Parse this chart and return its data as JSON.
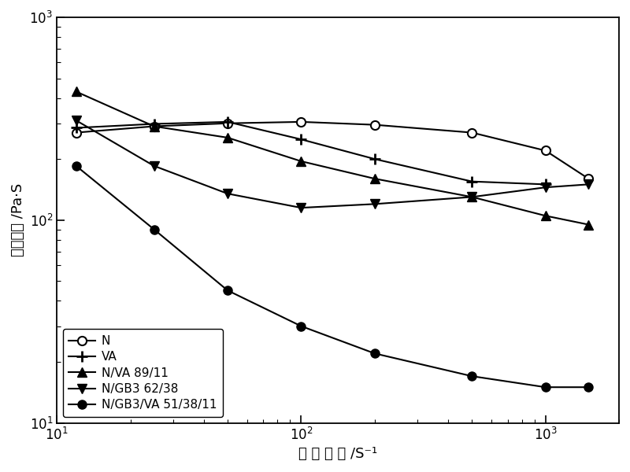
{
  "title": "",
  "xlabel": "剑 切 速 率 /S⁻¹",
  "ylabel": "表观粘度 /Pa·S",
  "xlim": [
    10,
    2000
  ],
  "ylim": [
    10,
    1000
  ],
  "series": [
    {
      "label": "N",
      "marker": "o",
      "marker_fill": "white",
      "marker_edge": "black",
      "marker_size": 8,
      "line_color": "black",
      "line_style": "-",
      "x": [
        12,
        25,
        50,
        100,
        200,
        500,
        1000,
        1500
      ],
      "y": [
        270,
        290,
        300,
        305,
        295,
        270,
        220,
        160
      ]
    },
    {
      "label": "VA",
      "marker": "P",
      "marker_fill": "black",
      "marker_edge": "black",
      "marker_size": 8,
      "line_color": "black",
      "line_style": "-",
      "x": [
        12,
        25,
        50,
        100,
        200,
        500,
        1000
      ],
      "y": [
        285,
        298,
        305,
        250,
        200,
        155,
        150
      ]
    },
    {
      "label": "N/VA 89/11",
      "marker": "^",
      "marker_fill": "black",
      "marker_edge": "black",
      "marker_size": 9,
      "line_color": "black",
      "line_style": "-",
      "x": [
        12,
        25,
        50,
        100,
        200,
        500,
        1000,
        1500
      ],
      "y": [
        430,
        290,
        255,
        195,
        160,
        130,
        105,
        95
      ]
    },
    {
      "label": "N/GB3 62/38",
      "marker": "v",
      "marker_fill": "black",
      "marker_edge": "black",
      "marker_size": 9,
      "line_color": "black",
      "line_style": "-",
      "x": [
        12,
        25,
        50,
        100,
        200,
        500,
        1000,
        1500
      ],
      "y": [
        310,
        185,
        135,
        115,
        120,
        130,
        145,
        150
      ]
    },
    {
      "label": "N/GB3/VA 51/38/11",
      "marker": "o",
      "marker_fill": "black",
      "marker_edge": "black",
      "marker_size": 8,
      "line_color": "black",
      "line_style": "-",
      "x": [
        12,
        25,
        50,
        100,
        200,
        500,
        1000,
        1500
      ],
      "y": [
        185,
        90,
        45,
        30,
        22,
        17,
        15,
        15
      ]
    }
  ],
  "background_color": "#ffffff",
  "font_size_labels": 13,
  "font_size_legend": 11,
  "font_size_ticks": 12
}
